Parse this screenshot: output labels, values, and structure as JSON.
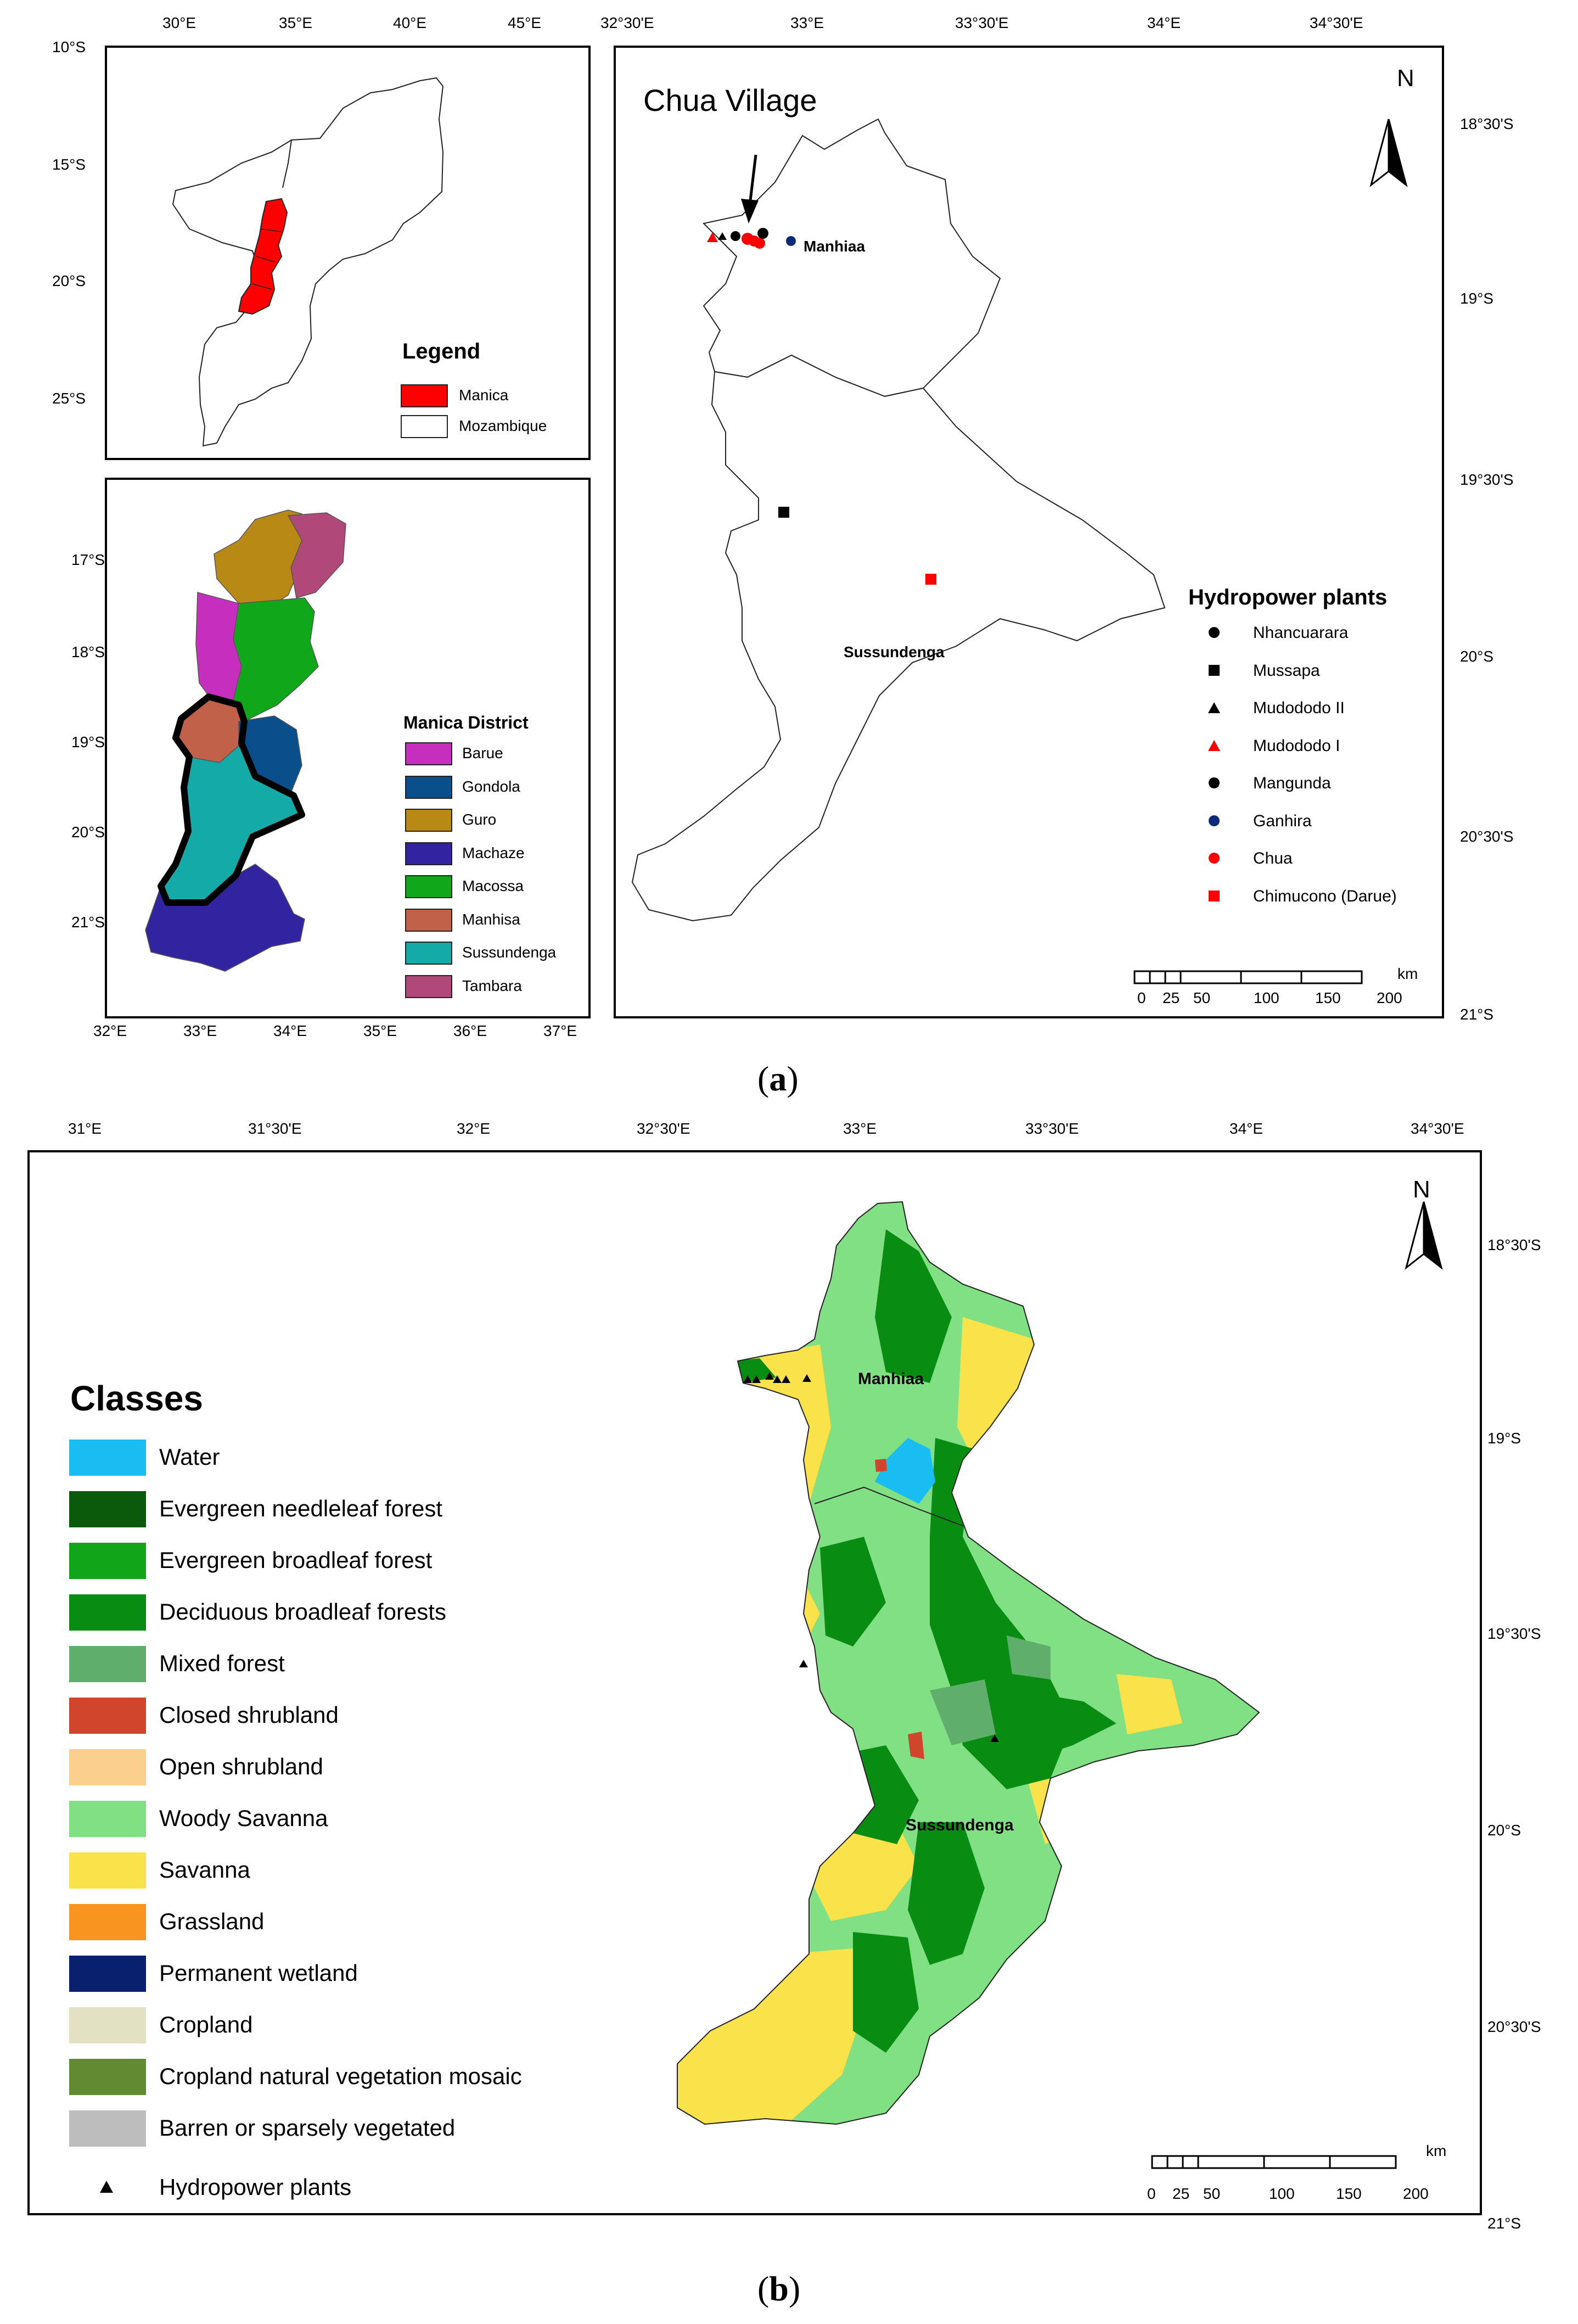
{
  "panel_a": {
    "caption_open": "(",
    "caption_letter": "a",
    "caption_close": ")",
    "inset_mozambique": {
      "top_ticks": [
        "30°E",
        "35°E",
        "40°E",
        "45°E"
      ],
      "left_ticks": [
        "10°S",
        "15°S",
        "20°S",
        "25°S"
      ],
      "legend_title": "Legend",
      "legend_items": [
        {
          "label": "Manica",
          "color": "#ff0000"
        },
        {
          "label": "Mozambique",
          "color": "#ffffff"
        }
      ]
    },
    "inset_districts": {
      "left_ticks": [
        "17°S",
        "18°S",
        "19°S",
        "20°S",
        "21°S"
      ],
      "bottom_ticks": [
        "32°E",
        "33°E",
        "34°E",
        "35°E",
        "36°E",
        "37°E"
      ],
      "legend_title": "Manica District",
      "districts": [
        {
          "label": "Barue",
          "color": "#c62fbd"
        },
        {
          "label": "Gondola",
          "color": "#0a4e8c"
        },
        {
          "label": "Guro",
          "color": "#b88a15"
        },
        {
          "label": "Machaze",
          "color": "#3224a0"
        },
        {
          "label": "Macossa",
          "color": "#10a81a"
        },
        {
          "label": "Manhisa",
          "color": "#c2614a"
        },
        {
          "label": "Sussundenga",
          "color": "#14aaa8"
        },
        {
          "label": "Tambara",
          "color": "#b0487a"
        }
      ]
    },
    "main_map": {
      "top_ticks": [
        "32°30'E",
        "33°E",
        "33°30'E",
        "34°E",
        "34°30'E"
      ],
      "right_ticks": [
        "18°30'S",
        "19°S",
        "19°30'S",
        "20°S",
        "20°30'S",
        "21°S"
      ],
      "north_label": "N",
      "annotation": "Chua Village",
      "places": [
        "Manhiaa",
        "Sussundenga"
      ],
      "legend_title": "Hydropower plants",
      "plants": [
        {
          "label": "Nhancuarara",
          "symbol": "circle",
          "color": "#000000"
        },
        {
          "label": "Mussapa",
          "symbol": "square",
          "color": "#000000"
        },
        {
          "label": "Mudododo II",
          "symbol": "triangle",
          "color": "#000000"
        },
        {
          "label": "Mudododo I",
          "symbol": "triangle",
          "color": "#ff0000"
        },
        {
          "label": "Mangunda",
          "symbol": "circle",
          "color": "#000000"
        },
        {
          "label": "Ganhira",
          "symbol": "circle",
          "color": "#0a2a7a"
        },
        {
          "label": "Chua",
          "symbol": "circle",
          "color": "#ff0000"
        },
        {
          "label": "Chimucono (Darue)",
          "symbol": "square",
          "color": "#ff0000"
        }
      ],
      "scale_unit": "km",
      "scale_numbers": [
        "0",
        "25",
        "50",
        "100",
        "150",
        "200"
      ]
    }
  },
  "panel_b": {
    "caption_open": "(",
    "caption_letter": "b",
    "caption_close": ")",
    "top_ticks": [
      "31°E",
      "31°30'E",
      "32°E",
      "32°30'E",
      "33°E",
      "33°30'E",
      "34°E",
      "34°30'E"
    ],
    "right_ticks": [
      "18°30'S",
      "19°S",
      "19°30'S",
      "20°S",
      "20°30'S",
      "21°S"
    ],
    "north_label": "N",
    "places": [
      "Manhiaa",
      "Sussundenga"
    ],
    "classes_title": "Classes",
    "classes": [
      {
        "label": "Water",
        "color": "#19bdf2"
      },
      {
        "label": "Evergreen needleleaf forest",
        "color": "#0b5a0b"
      },
      {
        "label": "Evergreen broadleaf forest",
        "color": "#11a61a"
      },
      {
        "label": "Deciduous broadleaf forests",
        "color": "#088c12"
      },
      {
        "label": "Mixed forest",
        "color": "#5fae6b"
      },
      {
        "label": "Closed shrubland",
        "color": "#d2452d"
      },
      {
        "label": "Open shrubland",
        "color": "#fbcf8e"
      },
      {
        "label": "Woody Savanna",
        "color": "#80e083"
      },
      {
        "label": "Savanna",
        "color": "#fae34a"
      },
      {
        "label": "Grassland",
        "color": "#fa9420"
      },
      {
        "label": "Permanent wetland",
        "color": "#08206e"
      },
      {
        "label": "Cropland",
        "color": "#e2e2c3"
      },
      {
        "label": "Cropland natural vegetation mosaic",
        "color": "#628a32"
      },
      {
        "label": "Barren or sparsely vegetated",
        "color": "#bdbdbd"
      }
    ],
    "hydro_label": "Hydropower plants",
    "scale_unit": "km",
    "scale_numbers": [
      "0",
      "25",
      "50",
      "100",
      "150",
      "200"
    ]
  }
}
